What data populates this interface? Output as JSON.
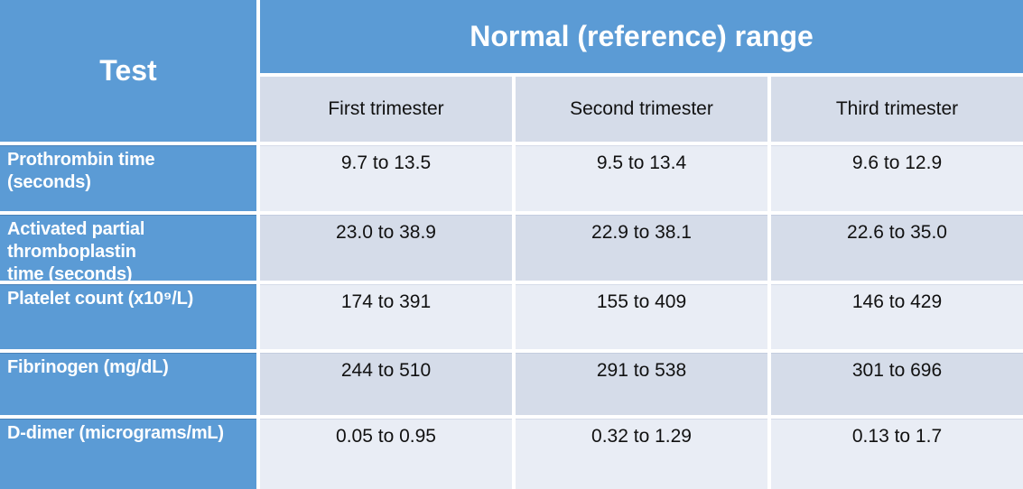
{
  "table": {
    "corner_header": "Test",
    "group_header": "Normal (reference) range",
    "column_headers": [
      "First trimester",
      "Second trimester",
      "Third trimester"
    ],
    "rows": [
      {
        "label": "Prothrombin time\n(seconds)",
        "values": [
          "9.7 to 13.5",
          "9.5 to 13.4",
          "9.6 to 12.9"
        ]
      },
      {
        "label": "Activated partial\nthromboplastin\ntime (seconds)",
        "values": [
          "23.0 to 38.9",
          "22.9 to 38.1",
          "22.6 to 35.0"
        ]
      },
      {
        "label": "Platelet count (x10⁹/L)",
        "values": [
          "174 to 391",
          "155 to 409",
          "146 to 429"
        ]
      },
      {
        "label": "Fibrinogen (mg/dL)",
        "values": [
          "244 to 510",
          "291 to 538",
          "301 to 696"
        ]
      },
      {
        "label": "D-dimer (micrograms/mL)",
        "values": [
          "0.05 to 0.95",
          "0.32 to 1.29",
          "0.13 to 1.7"
        ]
      }
    ],
    "colors": {
      "header_blue": "#5B9BD5",
      "band_light": "#E9EDF5",
      "band_dark": "#D5DCE9",
      "header_text": "#FFFFFF",
      "body_text": "#111111"
    }
  }
}
